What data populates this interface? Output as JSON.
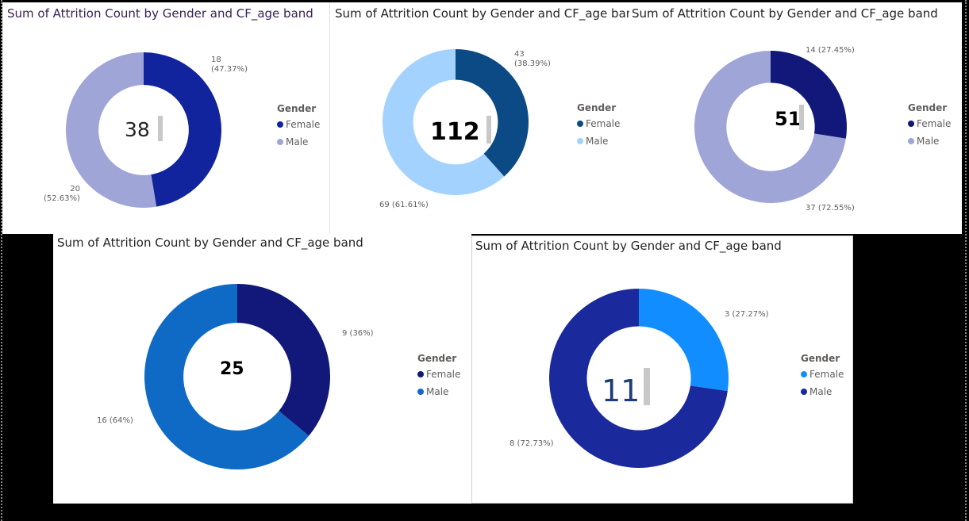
{
  "legend_title": "Gender",
  "chart_data": [
    {
      "type": "pie",
      "title": "Sum of Attrition Count by Gender and CF_age band",
      "center_value": "38",
      "categories": [
        "Female",
        "Male"
      ],
      "values": [
        18,
        20
      ],
      "data_labels": [
        "18\n(47.37%)",
        "20\n(52.63%)"
      ],
      "colors": [
        "#12239e",
        "#a0a5d8"
      ],
      "legend": "right"
    },
    {
      "type": "pie",
      "title": "Sum of Attrition Count by Gender and CF_age band",
      "center_value": "112",
      "categories": [
        "Female",
        "Male"
      ],
      "values": [
        43,
        69
      ],
      "data_labels": [
        "43\n(38.39%)",
        "69 (61.61%)"
      ],
      "colors": [
        "#0b4a84",
        "#a3d2ff"
      ],
      "legend": "right"
    },
    {
      "type": "pie",
      "title": "Sum of Attrition Count by Gender and CF_age band",
      "center_value": "51",
      "categories": [
        "Female",
        "Male"
      ],
      "values": [
        14,
        37
      ],
      "data_labels": [
        "14 (27.45%)",
        "37 (72.55%)"
      ],
      "colors": [
        "#12187a",
        "#a0a5d8"
      ],
      "legend": "right"
    },
    {
      "type": "pie",
      "title": "Sum of Attrition Count by Gender and CF_age band",
      "center_value": "25",
      "categories": [
        "Female",
        "Male"
      ],
      "values": [
        9,
        16
      ],
      "data_labels": [
        "9 (36%)",
        "16 (64%)"
      ],
      "colors": [
        "#12187a",
        "#0e6ac4"
      ],
      "legend": "right"
    },
    {
      "type": "pie",
      "title": "Sum of Attrition Count by Gender and CF_age band",
      "center_value": "11",
      "categories": [
        "Female",
        "Male"
      ],
      "values": [
        3,
        8
      ],
      "data_labels": [
        "3 (27.27%)",
        "8 (72.73%)"
      ],
      "colors": [
        "#118dff",
        "#1a2a9c"
      ],
      "legend": "right"
    }
  ]
}
